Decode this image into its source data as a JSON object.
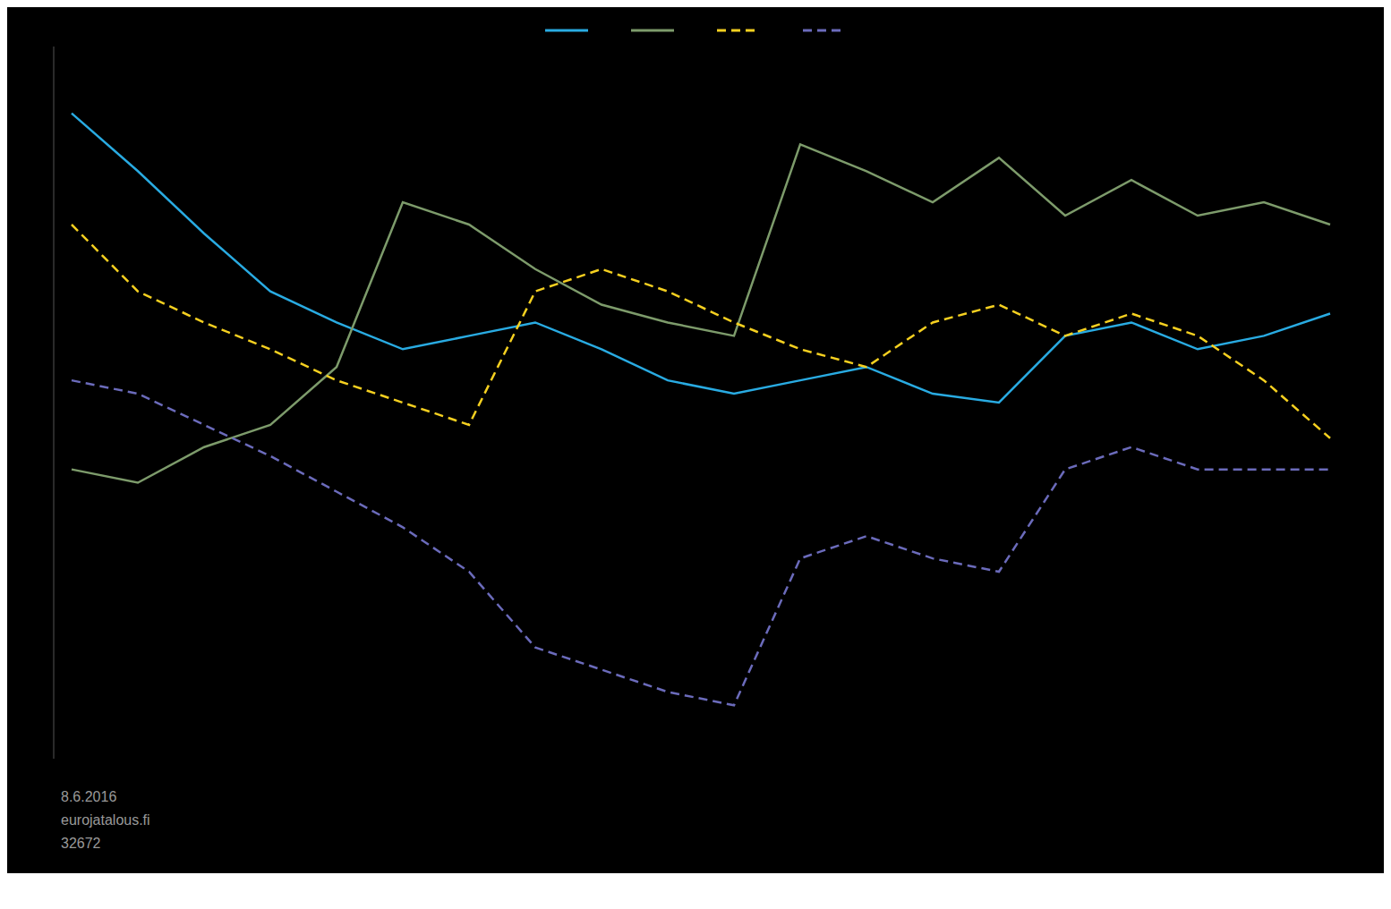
{
  "chart_data": {
    "type": "line",
    "series": [
      {
        "color": "#29abe2",
        "line_style": "solid",
        "values": [
          10.5,
          9.2,
          7.8,
          6.5,
          5.8,
          5.2,
          5.5,
          5.8,
          5.2,
          4.5,
          4.2,
          4.5,
          4.8,
          4.2,
          4.0,
          5.5,
          5.8,
          5.2,
          5.5,
          6.0
        ]
      },
      {
        "color": "#7d9b6b",
        "line_style": "solid",
        "values": [
          2.5,
          2.2,
          3.0,
          3.5,
          4.8,
          8.5,
          8.0,
          7.0,
          6.2,
          5.8,
          5.5,
          9.8,
          9.2,
          8.5,
          9.5,
          8.2,
          9.0,
          8.2,
          8.5,
          8.0
        ]
      },
      {
        "color": "#f5d020",
        "line_style": "dashed",
        "values": [
          8.0,
          6.5,
          5.8,
          5.2,
          4.5,
          4.0,
          3.5,
          6.5,
          7.0,
          6.5,
          5.8,
          5.2,
          4.8,
          5.8,
          6.2,
          5.5,
          6.0,
          5.5,
          4.5,
          3.2
        ]
      },
      {
        "color": "#6b6bbb",
        "line_style": "dashed",
        "values": [
          4.5,
          4.2,
          3.5,
          2.8,
          2.0,
          1.2,
          0.2,
          -1.5,
          -2.0,
          -2.5,
          -2.8,
          0.5,
          1.0,
          0.5,
          0.2,
          2.5,
          3.0,
          2.5,
          2.5,
          2.5
        ]
      }
    ],
    "ylim": [
      -4,
      12
    ],
    "tick_labels": false,
    "grid": false,
    "legend": "top",
    "annotations": [
      "8.6.2016",
      "eurojatalous.fi",
      "32672"
    ]
  }
}
